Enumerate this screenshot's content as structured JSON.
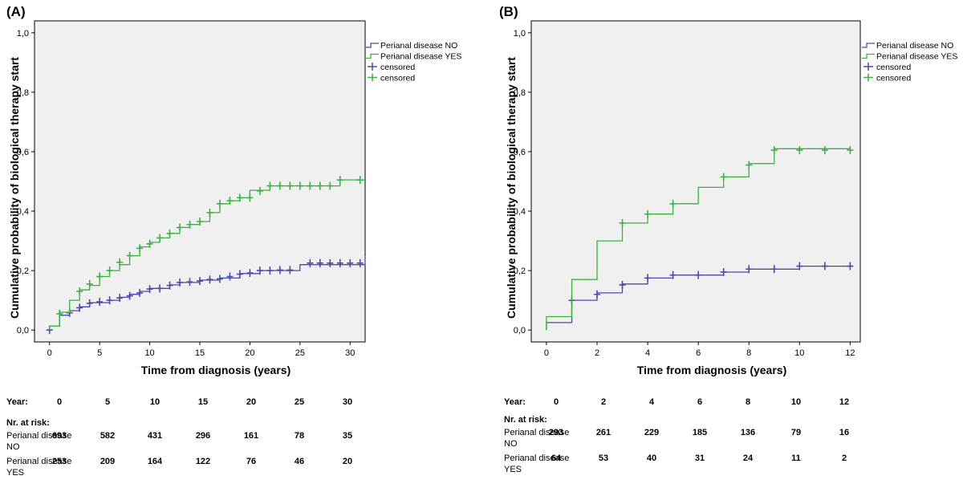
{
  "chart_data": [
    {
      "type": "line",
      "step": true,
      "panel_label": "(A)",
      "xlabel": "Time from diagnosis (years)",
      "ylabel": "Cumulative probability of biological therapy start",
      "xlim": [
        -1.5,
        31.5
      ],
      "ylim": [
        -0.04,
        1.04
      ],
      "xticks": [
        0,
        5,
        10,
        15,
        20,
        25,
        30
      ],
      "xtick_labels": [
        "0",
        "5",
        "10",
        "15",
        "20",
        "25",
        "30"
      ],
      "yticks": [
        0,
        0.2,
        0.4,
        0.6,
        0.8,
        1.0
      ],
      "ytick_labels": [
        "0,0",
        "0,2",
        "0,4",
        "0,6",
        "0,8",
        "1,0"
      ],
      "grid": false,
      "legend_position": "outside-right",
      "legend": [
        "Perianal disease NO",
        "Perianal disease YES",
        "censored",
        "censored"
      ],
      "colors": {
        "no": "#4a4aa8",
        "yes": "#3cb043",
        "plot_bg": "#f0f0f0"
      },
      "series": [
        {
          "name": "Perianal disease NO",
          "color": "#4a4aa8",
          "points": [
            [
              0,
              0
            ],
            [
              0,
              0.013
            ],
            [
              1,
              0.013
            ],
            [
              1,
              0.05
            ],
            [
              2,
              0.05
            ],
            [
              2,
              0.065
            ],
            [
              3,
              0.065
            ],
            [
              3,
              0.078
            ],
            [
              4,
              0.078
            ],
            [
              4,
              0.092
            ],
            [
              6,
              0.092
            ],
            [
              6,
              0.1
            ],
            [
              7,
              0.1
            ],
            [
              7,
              0.11
            ],
            [
              8,
              0.11
            ],
            [
              8,
              0.12
            ],
            [
              9,
              0.12
            ],
            [
              9,
              0.13
            ],
            [
              10,
              0.13
            ],
            [
              10,
              0.14
            ],
            [
              12,
              0.14
            ],
            [
              12,
              0.152
            ],
            [
              13,
              0.152
            ],
            [
              13,
              0.16
            ],
            [
              15,
              0.16
            ],
            [
              15,
              0.168
            ],
            [
              17,
              0.168
            ],
            [
              17,
              0.175
            ],
            [
              19,
              0.175
            ],
            [
              19,
              0.19
            ],
            [
              21,
              0.19
            ],
            [
              21,
              0.2
            ],
            [
              25,
              0.2
            ],
            [
              25,
              0.22
            ],
            [
              31.5,
              0.22
            ],
            [
              31.5,
              0.25
            ]
          ],
          "censored": [
            [
              0,
              0
            ],
            [
              2,
              0.058
            ],
            [
              3,
              0.075
            ],
            [
              4,
              0.09
            ],
            [
              5,
              0.095
            ],
            [
              6,
              0.1
            ],
            [
              7,
              0.108
            ],
            [
              8,
              0.115
            ],
            [
              9,
              0.125
            ],
            [
              10,
              0.138
            ],
            [
              11,
              0.14
            ],
            [
              12,
              0.15
            ],
            [
              13,
              0.16
            ],
            [
              14,
              0.162
            ],
            [
              15,
              0.165
            ],
            [
              16,
              0.17
            ],
            [
              17,
              0.172
            ],
            [
              18,
              0.18
            ],
            [
              19,
              0.188
            ],
            [
              20,
              0.192
            ],
            [
              21,
              0.2
            ],
            [
              22,
              0.2
            ],
            [
              23,
              0.202
            ],
            [
              24,
              0.202
            ],
            [
              26,
              0.225
            ],
            [
              27,
              0.225
            ],
            [
              28,
              0.225
            ],
            [
              29,
              0.225
            ],
            [
              30,
              0.225
            ],
            [
              31,
              0.225
            ]
          ]
        },
        {
          "name": "Perianal disease YES",
          "color": "#3cb043",
          "points": [
            [
              0,
              0
            ],
            [
              0,
              0.013
            ],
            [
              1,
              0.013
            ],
            [
              1,
              0.06
            ],
            [
              2,
              0.06
            ],
            [
              2,
              0.1
            ],
            [
              3,
              0.1
            ],
            [
              3,
              0.135
            ],
            [
              4,
              0.135
            ],
            [
              4,
              0.15
            ],
            [
              5,
              0.15
            ],
            [
              5,
              0.18
            ],
            [
              6,
              0.18
            ],
            [
              6,
              0.2
            ],
            [
              7,
              0.2
            ],
            [
              7,
              0.22
            ],
            [
              8,
              0.22
            ],
            [
              8,
              0.25
            ],
            [
              9,
              0.25
            ],
            [
              9,
              0.28
            ],
            [
              10,
              0.28
            ],
            [
              10,
              0.295
            ],
            [
              11,
              0.295
            ],
            [
              11,
              0.31
            ],
            [
              12,
              0.31
            ],
            [
              12,
              0.325
            ],
            [
              13,
              0.325
            ],
            [
              13,
              0.345
            ],
            [
              14,
              0.345
            ],
            [
              14,
              0.355
            ],
            [
              15,
              0.355
            ],
            [
              15,
              0.365
            ],
            [
              16,
              0.365
            ],
            [
              16,
              0.395
            ],
            [
              17,
              0.395
            ],
            [
              17,
              0.425
            ],
            [
              18,
              0.425
            ],
            [
              18,
              0.435
            ],
            [
              19,
              0.435
            ],
            [
              19,
              0.445
            ],
            [
              20,
              0.445
            ],
            [
              20,
              0.47
            ],
            [
              22,
              0.47
            ],
            [
              22,
              0.485
            ],
            [
              29,
              0.485
            ],
            [
              29,
              0.505
            ],
            [
              31.5,
              0.505
            ]
          ],
          "censored": [
            [
              1,
              0.055
            ],
            [
              3,
              0.13
            ],
            [
              4,
              0.155
            ],
            [
              5,
              0.18
            ],
            [
              6,
              0.2
            ],
            [
              7,
              0.228
            ],
            [
              8,
              0.25
            ],
            [
              9,
              0.275
            ],
            [
              10,
              0.29
            ],
            [
              11,
              0.31
            ],
            [
              12,
              0.325
            ],
            [
              13,
              0.345
            ],
            [
              14,
              0.355
            ],
            [
              15,
              0.365
            ],
            [
              16,
              0.395
            ],
            [
              17,
              0.425
            ],
            [
              18,
              0.435
            ],
            [
              19,
              0.445
            ],
            [
              20,
              0.445
            ],
            [
              21,
              0.468
            ],
            [
              22,
              0.485
            ],
            [
              23,
              0.485
            ],
            [
              24,
              0.485
            ],
            [
              25,
              0.485
            ],
            [
              26,
              0.485
            ],
            [
              27,
              0.485
            ],
            [
              28,
              0.485
            ],
            [
              29,
              0.505
            ],
            [
              31,
              0.505
            ]
          ]
        }
      ],
      "risk_table": {
        "year_label": "Year:",
        "years": [
          "0",
          "5",
          "10",
          "15",
          "20",
          "25",
          "30"
        ],
        "header": "Nr. at risk:",
        "rows": [
          {
            "label_line1": "Perianal disease",
            "label_line2": "NO",
            "values": [
              "693",
              "582",
              "431",
              "296",
              "161",
              "78",
              "35"
            ]
          },
          {
            "label_line1": "Perianal disease",
            "label_line2": "YES",
            "values": [
              "253",
              "209",
              "164",
              "122",
              "76",
              "46",
              "20"
            ]
          }
        ]
      }
    },
    {
      "type": "line",
      "step": true,
      "panel_label": "(B)",
      "xlabel": "Time from diagnosis (years)",
      "ylabel": "Cumulative probability of biological therapy start",
      "xlim": [
        -0.6,
        12.4
      ],
      "ylim": [
        -0.04,
        1.04
      ],
      "xticks": [
        0,
        2,
        4,
        6,
        8,
        10,
        12
      ],
      "xtick_labels": [
        "0",
        "2",
        "4",
        "6",
        "8",
        "10",
        "12"
      ],
      "yticks": [
        0,
        0.2,
        0.4,
        0.6,
        0.8,
        1.0
      ],
      "ytick_labels": [
        "0,0",
        "0,2",
        "0,4",
        "0,6",
        "0,8",
        "1,0"
      ],
      "grid": false,
      "legend_position": "outside-right",
      "legend": [
        "Perianal disease NO",
        "Perianal disease YES",
        "censored",
        "censored"
      ],
      "colors": {
        "no": "#4a4aa8",
        "yes": "#3cb043",
        "plot_bg": "#f0f0f0"
      },
      "series": [
        {
          "name": "Perianal disease NO",
          "color": "#4a4aa8",
          "points": [
            [
              0,
              0
            ],
            [
              0,
              0.025
            ],
            [
              1,
              0.025
            ],
            [
              1,
              0.1
            ],
            [
              2,
              0.1
            ],
            [
              2,
              0.125
            ],
            [
              3,
              0.125
            ],
            [
              3,
              0.155
            ],
            [
              4,
              0.155
            ],
            [
              4,
              0.175
            ],
            [
              5,
              0.175
            ],
            [
              5,
              0.185
            ],
            [
              7,
              0.185
            ],
            [
              7,
              0.195
            ],
            [
              8,
              0.195
            ],
            [
              8,
              0.205
            ],
            [
              10,
              0.205
            ],
            [
              10,
              0.215
            ],
            [
              12,
              0.215
            ]
          ],
          "censored": [
            [
              1,
              0.1
            ],
            [
              2,
              0.12
            ],
            [
              3,
              0.152
            ],
            [
              4,
              0.175
            ],
            [
              5,
              0.185
            ],
            [
              6,
              0.185
            ],
            [
              7,
              0.195
            ],
            [
              8,
              0.205
            ],
            [
              9,
              0.205
            ],
            [
              10,
              0.215
            ],
            [
              11,
              0.215
            ],
            [
              12,
              0.215
            ]
          ]
        },
        {
          "name": "Perianal disease YES",
          "color": "#3cb043",
          "points": [
            [
              0,
              0
            ],
            [
              0,
              0.045
            ],
            [
              1,
              0.045
            ],
            [
              1,
              0.17
            ],
            [
              2,
              0.17
            ],
            [
              2,
              0.3
            ],
            [
              3,
              0.3
            ],
            [
              3,
              0.36
            ],
            [
              4,
              0.36
            ],
            [
              4,
              0.39
            ],
            [
              5,
              0.39
            ],
            [
              5,
              0.425
            ],
            [
              6,
              0.425
            ],
            [
              6,
              0.48
            ],
            [
              7,
              0.48
            ],
            [
              7,
              0.515
            ],
            [
              8,
              0.515
            ],
            [
              8,
              0.56
            ],
            [
              9,
              0.56
            ],
            [
              9,
              0.61
            ],
            [
              12,
              0.61
            ]
          ],
          "censored": [
            [
              3,
              0.36
            ],
            [
              4,
              0.39
            ],
            [
              5,
              0.425
            ],
            [
              7,
              0.515
            ],
            [
              8,
              0.555
            ],
            [
              9,
              0.605
            ],
            [
              10,
              0.605
            ],
            [
              11,
              0.605
            ],
            [
              12,
              0.605
            ]
          ]
        }
      ],
      "risk_table": {
        "year_label": "Year:",
        "years": [
          "0",
          "2",
          "4",
          "6",
          "8",
          "10",
          "12"
        ],
        "header": "Nr. at risk:",
        "rows": [
          {
            "label_line1": "Perianal disease",
            "label_line2": "NO",
            "values": [
              "293",
              "261",
              "229",
              "185",
              "136",
              "79",
              "16"
            ]
          },
          {
            "label_line1": "Perianal disease",
            "label_line2": "YES",
            "values": [
              "64",
              "53",
              "40",
              "31",
              "24",
              "11",
              "2"
            ]
          }
        ]
      }
    }
  ]
}
